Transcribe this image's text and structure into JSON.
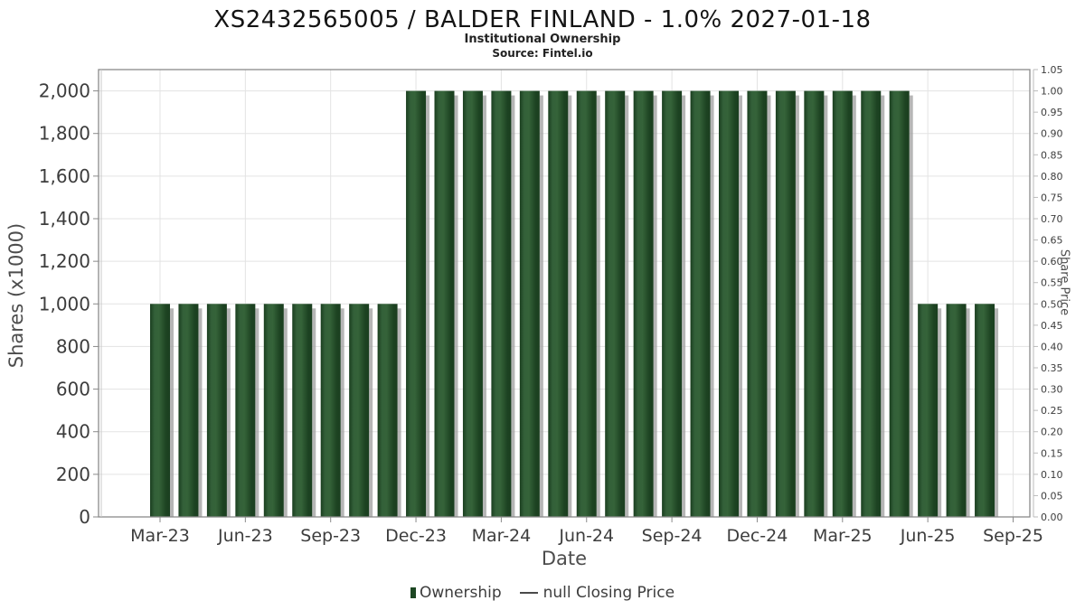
{
  "header": {
    "title": "XS2432565005 / BALDER FINLAND - 1.0% 2027-01-18",
    "subtitle": "Institutional Ownership",
    "source": "Source: Fintel.io"
  },
  "chart_data": {
    "type": "bar",
    "title": "XS2432565005 / BALDER FINLAND - 1.0% 2027-01-18",
    "subtitle": "Institutional Ownership",
    "source": "Source: Fintel.io",
    "grid": true,
    "legend_position": "bottom",
    "x_axis": {
      "label": "Date",
      "tick_labels": [
        "Mar-23",
        "Jun-23",
        "Sep-23",
        "Dec-23",
        "Mar-24",
        "Jun-24",
        "Sep-24",
        "Dec-24",
        "Mar-25",
        "Jun-25",
        "Sep-25"
      ],
      "months_per_tick": 3
    },
    "left_axis": {
      "label": "Shares (x1000)",
      "tick_labels": [
        "0",
        "200",
        "400",
        "600",
        "800",
        "1,000",
        "1,200",
        "1,400",
        "1,600",
        "1,800",
        "2,000"
      ],
      "tick_step": 200,
      "range": [
        0,
        2100
      ]
    },
    "right_axis": {
      "label": "Share Price",
      "tick_labels": [
        "0.00",
        "0.05",
        "0.10",
        "0.15",
        "0.20",
        "0.25",
        "0.30",
        "0.35",
        "0.40",
        "0.45",
        "0.50",
        "0.55",
        "0.60",
        "0.65",
        "0.70",
        "0.75",
        "0.80",
        "0.85",
        "0.90",
        "0.95",
        "1.00",
        "1.05"
      ],
      "tick_step": 0.05,
      "range": [
        0,
        1.05
      ]
    },
    "series": [
      {
        "name": "Ownership",
        "type": "bar",
        "color": "#2b5431",
        "x": [
          "Mar-23",
          "Apr-23",
          "May-23",
          "Jun-23",
          "Jul-23",
          "Aug-23",
          "Sep-23",
          "Oct-23",
          "Nov-23",
          "Dec-23",
          "Jan-24",
          "Feb-24",
          "Mar-24",
          "Apr-24",
          "May-24",
          "Jun-24",
          "Jul-24",
          "Aug-24",
          "Sep-24",
          "Oct-24",
          "Nov-24",
          "Dec-24",
          "Jan-25",
          "Feb-25",
          "Mar-25",
          "Apr-25",
          "May-25",
          "Jun-25",
          "Jul-25",
          "Aug-25"
        ],
        "values": [
          1000,
          1000,
          1000,
          1000,
          1000,
          1000,
          1000,
          1000,
          1000,
          2000,
          2000,
          2000,
          2000,
          2000,
          2000,
          2000,
          2000,
          2000,
          2000,
          2000,
          2000,
          2000,
          2000,
          2000,
          2000,
          2000,
          2000,
          1000,
          1000,
          1000
        ]
      },
      {
        "name": "null Closing Price",
        "type": "line",
        "color": "#4a4a4a",
        "values": []
      }
    ],
    "colors": {
      "bar_dark": "#1a3e1f",
      "bar_mid": "#336039",
      "bar_light": "#356339",
      "bar_edge": "#1d4322",
      "shadow": "#9e9e9e",
      "gridline": "#e3e3e3",
      "spine": "#8a8a8a",
      "tick_label": "#3d3d3d"
    }
  },
  "legend": {
    "items": [
      {
        "label": "Ownership",
        "marker": "bar-swatch",
        "color": "#1d4723"
      },
      {
        "label": "null Closing Price",
        "marker": "line-dash",
        "color": "#4a4a4a"
      }
    ]
  }
}
